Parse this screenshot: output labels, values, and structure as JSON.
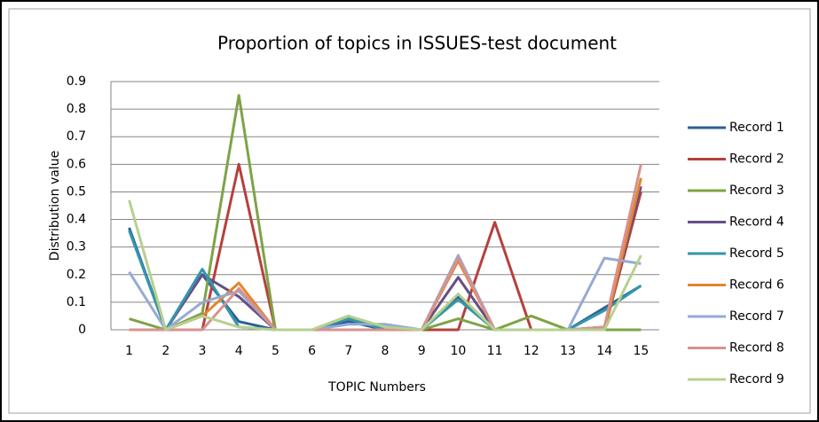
{
  "chart_data": {
    "type": "line",
    "title": "Proportion of topics in ISSUES-test document",
    "x_label": "TOPIC Numbers",
    "y_label": "Distribution value",
    "categories": [
      "1",
      "2",
      "3",
      "4",
      "5",
      "6",
      "7",
      "8",
      "9",
      "10",
      "11",
      "12",
      "13",
      "14",
      "15"
    ],
    "ylim": [
      0,
      0.9
    ],
    "yticks": [
      0,
      0.1,
      0.2,
      0.3,
      0.4,
      0.5,
      0.6,
      0.7,
      0.8,
      0.9
    ],
    "grid": true,
    "legend": "right",
    "series": [
      {
        "name": "Record 1",
        "color": "#2e5f97",
        "values": [
          0.37,
          0,
          0.2,
          0.03,
          0,
          0,
          0.03,
          0,
          0,
          0.12,
          0,
          0,
          0,
          0.08,
          0.16
        ]
      },
      {
        "name": "Record 2",
        "color": "#b5413d",
        "values": [
          0,
          0,
          0,
          0.6,
          0,
          0,
          0,
          0,
          0,
          0,
          0.39,
          0,
          0,
          0,
          0.5
        ]
      },
      {
        "name": "Record 3",
        "color": "#7ea346",
        "values": [
          0.04,
          0,
          0.06,
          0.85,
          0,
          0,
          0.05,
          0,
          0,
          0.04,
          0,
          0.05,
          0,
          0,
          0
        ]
      },
      {
        "name": "Record 4",
        "color": "#664f86",
        "values": [
          0,
          0,
          0.2,
          0.12,
          0,
          0,
          0,
          0,
          0,
          0.19,
          0,
          0,
          0,
          0.01,
          0.52
        ]
      },
      {
        "name": "Record 5",
        "color": "#3496ab",
        "values": [
          0.36,
          0,
          0.22,
          0.01,
          0,
          0,
          0.04,
          0,
          0,
          0.11,
          0,
          0,
          0,
          0.07,
          0.16
        ]
      },
      {
        "name": "Record 6",
        "color": "#e5842d",
        "values": [
          0,
          0,
          0.05,
          0.17,
          0,
          0,
          0,
          0,
          0,
          0.25,
          0,
          0,
          0,
          0,
          0.55
        ]
      },
      {
        "name": "Record 7",
        "color": "#96aad3",
        "values": [
          0.21,
          0,
          0.1,
          0.14,
          0,
          0,
          0.02,
          0.02,
          0,
          0.27,
          0,
          0,
          0,
          0.26,
          0.24
        ]
      },
      {
        "name": "Record 8",
        "color": "#d6928f",
        "values": [
          0,
          0,
          0,
          0.15,
          0,
          0,
          0,
          0,
          0,
          0.26,
          0,
          0,
          0,
          0.01,
          0.6
        ]
      },
      {
        "name": "Record 9",
        "color": "#b7d08f",
        "values": [
          0.47,
          0,
          0.05,
          0.01,
          0,
          0,
          0.05,
          0.01,
          0,
          0.13,
          0,
          0,
          0,
          0,
          0.27
        ]
      }
    ]
  }
}
